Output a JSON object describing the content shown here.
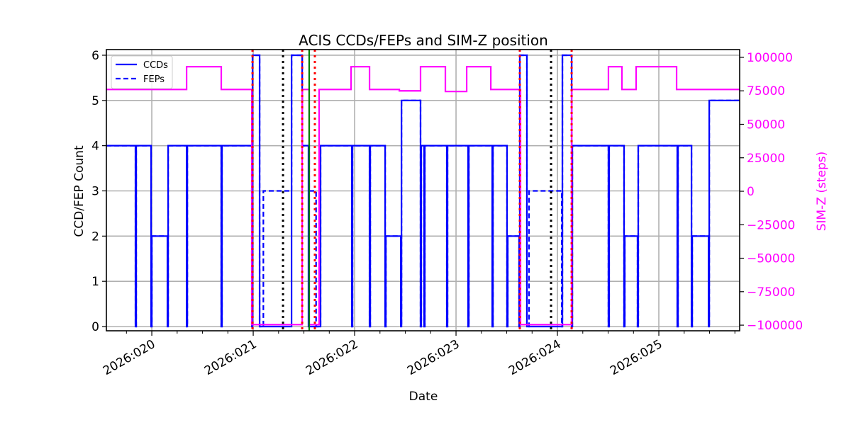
{
  "chart_data": {
    "type": "line",
    "title": "ACIS CCDs/FEPs and SIM-Z position",
    "xlabel": "Date",
    "ylabel": "CCD/FEP Count",
    "ylabel_right": "SIM-Z (steps)",
    "xlim": [
      19.552,
      25.797
    ],
    "ylim": [
      -0.094,
      6.125
    ],
    "ylim_right": [
      -104200,
      105800
    ],
    "grid": true,
    "legend_position": "top-left",
    "x_ticks": [
      {
        "value": 20,
        "label": "2026:020"
      },
      {
        "value": 21,
        "label": "2026:021"
      },
      {
        "value": 22,
        "label": "2026:022"
      },
      {
        "value": 23,
        "label": "2026:023"
      },
      {
        "value": 24,
        "label": "2026:024"
      },
      {
        "value": 25,
        "label": "2026:025"
      }
    ],
    "y_ticks": [
      "0",
      "1",
      "2",
      "3",
      "4",
      "5",
      "6"
    ],
    "y_ticks_right": [
      {
        "value": 100000,
        "label": "100000"
      },
      {
        "value": 75000,
        "label": "75000"
      },
      {
        "value": 50000,
        "label": "50000"
      },
      {
        "value": 25000,
        "label": "25000"
      },
      {
        "value": 0,
        "label": "0"
      },
      {
        "value": -25000,
        "label": "−25000"
      },
      {
        "value": -50000,
        "label": "−50000"
      },
      {
        "value": -75000,
        "label": "−75000"
      },
      {
        "value": -100000,
        "label": "−100000"
      }
    ],
    "series": [
      {
        "name": "CCDs",
        "axis": "left",
        "style": "solid",
        "color": "#0000ff",
        "steps": [
          [
            19.552,
            4
          ],
          [
            19.839,
            0
          ],
          [
            19.846,
            4
          ],
          [
            19.993,
            0
          ],
          [
            20.0,
            2
          ],
          [
            20.154,
            0
          ],
          [
            20.161,
            4
          ],
          [
            20.343,
            0
          ],
          [
            20.35,
            4
          ],
          [
            20.685,
            0
          ],
          [
            20.692,
            4
          ],
          [
            20.986,
            0
          ],
          [
            20.993,
            6
          ],
          [
            21.063,
            0
          ],
          [
            21.378,
            6
          ],
          [
            21.483,
            4
          ],
          [
            21.545,
            0
          ],
          [
            21.664,
            4
          ],
          [
            21.972,
            0
          ],
          [
            21.979,
            4
          ],
          [
            22.147,
            0
          ],
          [
            22.154,
            4
          ],
          [
            22.301,
            0
          ],
          [
            22.308,
            2
          ],
          [
            22.455,
            0
          ],
          [
            22.462,
            5
          ],
          [
            22.65,
            0
          ],
          [
            22.657,
            4
          ],
          [
            22.685,
            0
          ],
          [
            22.692,
            4
          ],
          [
            22.909,
            0
          ],
          [
            22.916,
            4
          ],
          [
            23.119,
            0
          ],
          [
            23.126,
            4
          ],
          [
            23.357,
            0
          ],
          [
            23.364,
            4
          ],
          [
            23.503,
            0
          ],
          [
            23.51,
            2
          ],
          [
            23.622,
            0
          ],
          [
            23.629,
            6
          ],
          [
            23.699,
            0
          ],
          [
            24.049,
            6
          ],
          [
            24.14,
            0
          ],
          [
            24.147,
            4
          ],
          [
            24.503,
            0
          ],
          [
            24.51,
            4
          ],
          [
            24.657,
            0
          ],
          [
            24.664,
            2
          ],
          [
            24.79,
            0
          ],
          [
            24.797,
            4
          ],
          [
            25.182,
            0
          ],
          [
            25.189,
            4
          ],
          [
            25.322,
            0
          ],
          [
            25.329,
            2
          ],
          [
            25.49,
            0
          ],
          [
            25.497,
            5
          ],
          [
            25.797,
            5
          ]
        ]
      },
      {
        "name": "FEPs",
        "axis": "left",
        "style": "dashed",
        "color": "#0000ff",
        "steps": [
          [
            19.552,
            4
          ],
          [
            19.839,
            0
          ],
          [
            19.846,
            4
          ],
          [
            19.993,
            0
          ],
          [
            20.0,
            2
          ],
          [
            20.154,
            0
          ],
          [
            20.161,
            4
          ],
          [
            20.343,
            0
          ],
          [
            20.35,
            4
          ],
          [
            20.685,
            0
          ],
          [
            20.692,
            4
          ],
          [
            20.986,
            0
          ],
          [
            20.993,
            6
          ],
          [
            21.063,
            0
          ],
          [
            21.1,
            3
          ],
          [
            21.378,
            6
          ],
          [
            21.483,
            4
          ],
          [
            21.552,
            3
          ],
          [
            21.62,
            0
          ],
          [
            21.664,
            4
          ],
          [
            21.972,
            0
          ],
          [
            21.979,
            4
          ],
          [
            22.147,
            0
          ],
          [
            22.154,
            4
          ],
          [
            22.301,
            0
          ],
          [
            22.308,
            2
          ],
          [
            22.455,
            0
          ],
          [
            22.462,
            5
          ],
          [
            22.65,
            0
          ],
          [
            22.657,
            4
          ],
          [
            22.685,
            0
          ],
          [
            22.692,
            4
          ],
          [
            22.909,
            0
          ],
          [
            22.916,
            4
          ],
          [
            23.119,
            0
          ],
          [
            23.126,
            4
          ],
          [
            23.357,
            0
          ],
          [
            23.364,
            4
          ],
          [
            23.503,
            0
          ],
          [
            23.51,
            2
          ],
          [
            23.622,
            0
          ],
          [
            23.629,
            6
          ],
          [
            23.699,
            0
          ],
          [
            23.72,
            3
          ],
          [
            24.042,
            0
          ],
          [
            24.049,
            6
          ],
          [
            24.14,
            0
          ],
          [
            24.147,
            4
          ],
          [
            24.503,
            0
          ],
          [
            24.51,
            4
          ],
          [
            24.657,
            0
          ],
          [
            24.664,
            2
          ],
          [
            24.79,
            0
          ],
          [
            24.797,
            4
          ],
          [
            25.182,
            0
          ],
          [
            25.189,
            4
          ],
          [
            25.322,
            0
          ],
          [
            25.329,
            2
          ],
          [
            25.49,
            0
          ],
          [
            25.497,
            5
          ],
          [
            25.797,
            5
          ]
        ]
      },
      {
        "name": "SIM-Z",
        "axis": "right",
        "style": "solid",
        "color": "#ff00ff",
        "steps": [
          [
            19.552,
            76000
          ],
          [
            20.343,
            93000
          ],
          [
            20.685,
            76000
          ],
          [
            20.986,
            -99600
          ],
          [
            21.483,
            76000
          ],
          [
            21.552,
            -99600
          ],
          [
            21.65,
            76000
          ],
          [
            21.965,
            93000
          ],
          [
            22.147,
            76000
          ],
          [
            22.441,
            75000
          ],
          [
            22.65,
            93000
          ],
          [
            22.895,
            74500
          ],
          [
            23.105,
            93000
          ],
          [
            23.343,
            76000
          ],
          [
            23.636,
            -99600
          ],
          [
            24.14,
            76000
          ],
          [
            24.503,
            93000
          ],
          [
            24.636,
            76000
          ],
          [
            24.776,
            93000
          ],
          [
            25.175,
            76000
          ],
          [
            25.797,
            76000
          ]
        ]
      }
    ],
    "vlines": [
      {
        "x": 21.294,
        "color": "#000000",
        "style": "dotted"
      },
      {
        "x": 23.937,
        "color": "#000000",
        "style": "dotted"
      },
      {
        "x": 20.993,
        "color": "#ff0000",
        "style": "dotted"
      },
      {
        "x": 21.483,
        "color": "#ff0000",
        "style": "dotted"
      },
      {
        "x": 21.608,
        "color": "#ff0000",
        "style": "dotted"
      },
      {
        "x": 23.629,
        "color": "#ff0000",
        "style": "dotted"
      },
      {
        "x": 24.14,
        "color": "#ff0000",
        "style": "dotted"
      },
      {
        "x": 21.552,
        "color": "#008000",
        "style": "solid"
      }
    ],
    "legend": [
      "CCDs",
      "FEPs"
    ]
  }
}
